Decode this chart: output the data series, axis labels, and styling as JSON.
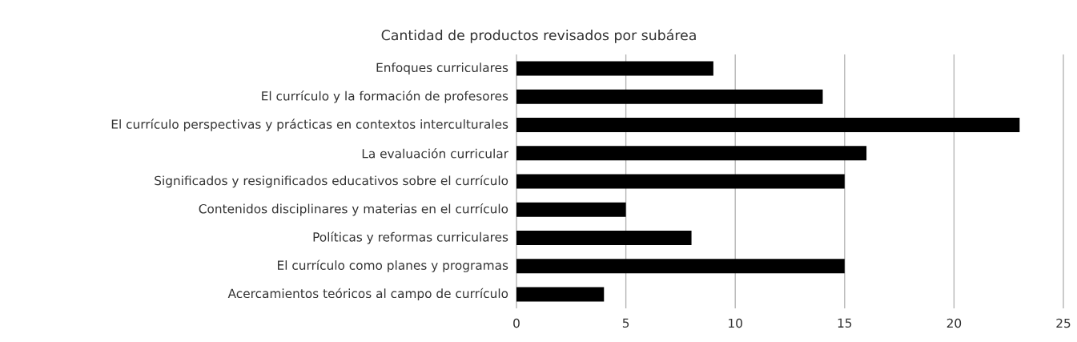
{
  "chart_data": {
    "type": "bar",
    "orientation": "horizontal",
    "title": "Cantidad de productos revisados por subárea",
    "categories": [
      "Enfoques curriculares",
      "El currículo y la formación de profesores",
      "El currículo perspectivas y prácticas en contextos interculturales",
      "La evaluación curricular",
      "Significados y resignificados educativos sobre el currículo",
      "Contenidos disciplinares y materias en el currículo",
      "Políticas y reformas curriculares",
      "El currículo como planes y programas",
      "Acercamientos teóricos al campo de currículo"
    ],
    "values": [
      9,
      14,
      23,
      16,
      15,
      5,
      8,
      15,
      4
    ],
    "color": "#000000",
    "xlim": [
      0,
      25
    ],
    "xticks": [
      0,
      5,
      10,
      15,
      20,
      25
    ],
    "grid": "x"
  }
}
